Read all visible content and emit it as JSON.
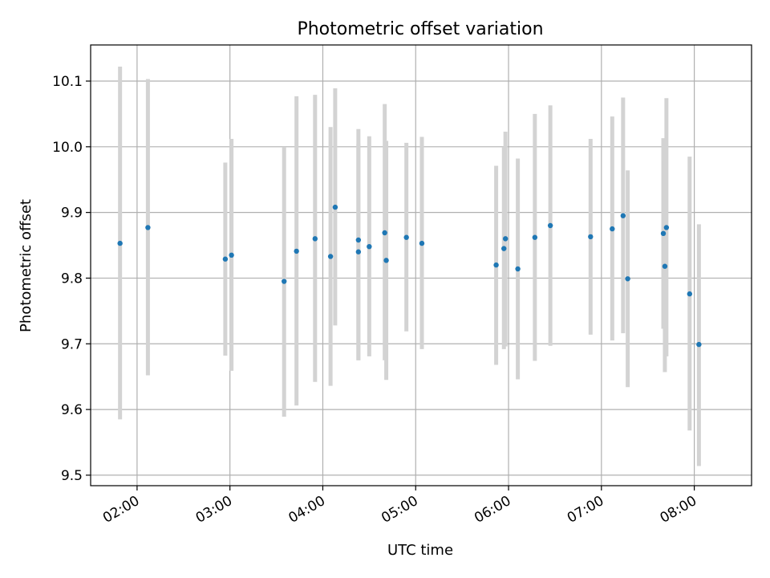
{
  "chart_data": {
    "type": "scatter",
    "title": "Photometric offset variation",
    "xlabel": "UTC time",
    "ylabel": "Photometric offset",
    "xlim": [
      "01:30",
      "08:37"
    ],
    "ylim": [
      9.484,
      10.155
    ],
    "xticks": [
      "02:00",
      "03:00",
      "04:00",
      "05:00",
      "06:00",
      "07:00",
      "08:00"
    ],
    "yticks": [
      "9.5",
      "9.6",
      "9.7",
      "9.8",
      "9.9",
      "10.0",
      "10.1"
    ],
    "grid": true,
    "colors": {
      "point": "#1f77b4",
      "errorbar": "#d3d3d3",
      "grid": "#b0b0b0"
    },
    "points": [
      {
        "x": "01:49",
        "y": 9.853,
        "yerr_low": 9.585,
        "yerr_high": 10.122
      },
      {
        "x": "02:07",
        "y": 9.877,
        "yerr_low": 9.652,
        "yerr_high": 10.103
      },
      {
        "x": "02:57",
        "y": 9.829,
        "yerr_low": 9.682,
        "yerr_high": 9.976
      },
      {
        "x": "03:01",
        "y": 9.835,
        "yerr_low": 9.659,
        "yerr_high": 10.012
      },
      {
        "x": "03:35",
        "y": 9.795,
        "yerr_low": 9.589,
        "yerr_high": 10.0
      },
      {
        "x": "03:43",
        "y": 9.841,
        "yerr_low": 9.606,
        "yerr_high": 10.077
      },
      {
        "x": "03:55",
        "y": 9.86,
        "yerr_low": 9.642,
        "yerr_high": 10.079
      },
      {
        "x": "04:05",
        "y": 9.833,
        "yerr_low": 9.636,
        "yerr_high": 10.03
      },
      {
        "x": "04:08",
        "y": 9.908,
        "yerr_low": 9.728,
        "yerr_high": 10.089
      },
      {
        "x": "04:23",
        "y": 9.858,
        "yerr_low": 9.675,
        "yerr_high": 10.027
      },
      {
        "x": "04:23",
        "y": 9.84,
        "yerr_low": 9.675,
        "yerr_high": 10.005
      },
      {
        "x": "04:30",
        "y": 9.848,
        "yerr_low": 9.681,
        "yerr_high": 10.016
      },
      {
        "x": "04:40",
        "y": 9.869,
        "yerr_low": 9.675,
        "yerr_high": 10.065
      },
      {
        "x": "04:41",
        "y": 9.827,
        "yerr_low": 9.645,
        "yerr_high": 10.009
      },
      {
        "x": "04:54",
        "y": 9.862,
        "yerr_low": 9.719,
        "yerr_high": 10.006
      },
      {
        "x": "05:04",
        "y": 9.853,
        "yerr_low": 9.692,
        "yerr_high": 10.015
      },
      {
        "x": "05:52",
        "y": 9.82,
        "yerr_low": 9.668,
        "yerr_high": 9.971
      },
      {
        "x": "05:57",
        "y": 9.845,
        "yerr_low": 9.692,
        "yerr_high": 10.0
      },
      {
        "x": "05:58",
        "y": 9.86,
        "yerr_low": 9.696,
        "yerr_high": 10.023
      },
      {
        "x": "06:06",
        "y": 9.814,
        "yerr_low": 9.646,
        "yerr_high": 9.982
      },
      {
        "x": "06:17",
        "y": 9.862,
        "yerr_low": 9.674,
        "yerr_high": 10.05
      },
      {
        "x": "06:27",
        "y": 9.88,
        "yerr_low": 9.697,
        "yerr_high": 10.063
      },
      {
        "x": "06:53",
        "y": 9.863,
        "yerr_low": 9.714,
        "yerr_high": 10.012
      },
      {
        "x": "07:07",
        "y": 9.875,
        "yerr_low": 9.705,
        "yerr_high": 10.046
      },
      {
        "x": "07:14",
        "y": 9.895,
        "yerr_low": 9.716,
        "yerr_high": 10.075
      },
      {
        "x": "07:17",
        "y": 9.799,
        "yerr_low": 9.634,
        "yerr_high": 9.964
      },
      {
        "x": "07:40",
        "y": 9.868,
        "yerr_low": 9.723,
        "yerr_high": 10.013
      },
      {
        "x": "07:41",
        "y": 9.818,
        "yerr_low": 9.657,
        "yerr_high": 9.98
      },
      {
        "x": "07:42",
        "y": 9.877,
        "yerr_low": 9.681,
        "yerr_high": 10.074
      },
      {
        "x": "07:57",
        "y": 9.776,
        "yerr_low": 9.568,
        "yerr_high": 9.985
      },
      {
        "x": "08:03",
        "y": 9.699,
        "yerr_low": 9.514,
        "yerr_high": 9.882
      }
    ]
  }
}
